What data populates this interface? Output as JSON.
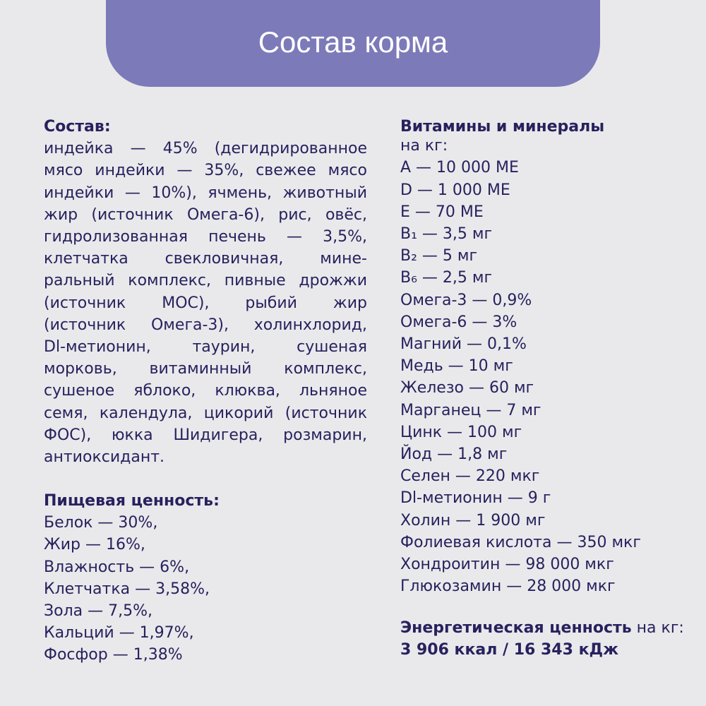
{
  "header": {
    "title": "Состав корма"
  },
  "composition": {
    "heading": "Состав:",
    "lines": [
      "индейка — 45% (дегидрированное",
      "мясо индейки — 35%, свежее мясо",
      "индейки — 10%), ячмень, животный",
      "жир (источник Омега-6), рис, овёс,",
      "гидролизованная печень — 3,5%,",
      "клетчатка свекловичная, мине-",
      "ральный комплекс, пивные дрожжи",
      "(источник МОС), рыбий жир",
      "(источник Омега-3), холинхлорид,",
      "Dl-метионин, таурин, сушеная",
      "морковь, витаминный комплекс,",
      "сушеное яблоко, клюква, льняное",
      "семя, календула, цикорий (источник",
      "ФОС), юкка Шидигера, розмарин,",
      "антиоксидант."
    ]
  },
  "nutrition": {
    "heading": "Пищевая ценность:",
    "items": [
      "Белок — 30%,",
      "Жир — 16%,",
      "Влажность — 6%,",
      "Клетчатка — 3,58%,",
      "Зола — 7,5%,",
      "Кальций — 1,97%,",
      "Фосфор — 1,38%"
    ]
  },
  "vitamins": {
    "heading": "Витамины и минералы",
    "subheading": "на кг:",
    "items": [
      "A — 10 000 МЕ",
      "D — 1 000 МЕ",
      "E — 70 МЕ",
      "B₁ — 3,5 мг",
      "B₂ — 5 мг",
      "B₆ — 2,5 мг",
      "Омега-3 — 0,9%",
      "Омега-6 — 3%",
      "Магний — 0,1%",
      "Медь — 10 мг",
      "Железо — 60 мг",
      "Марганец — 7 мг",
      "Цинк — 100 мг",
      "Йод — 1,8 мг",
      "Селен — 220 мкг",
      "Dl-метионин — 9 г",
      "Холин — 1 900 мг",
      "Фолиевая кислота — 350 мкг",
      "Хондроитин — 98 000 мкг",
      "Глюкозамин — 28 000 мкг"
    ]
  },
  "energy": {
    "label": "Энергетическая ценность",
    "unit": "на кг:",
    "value": "3 906 ккал / 16 343 кДж"
  }
}
